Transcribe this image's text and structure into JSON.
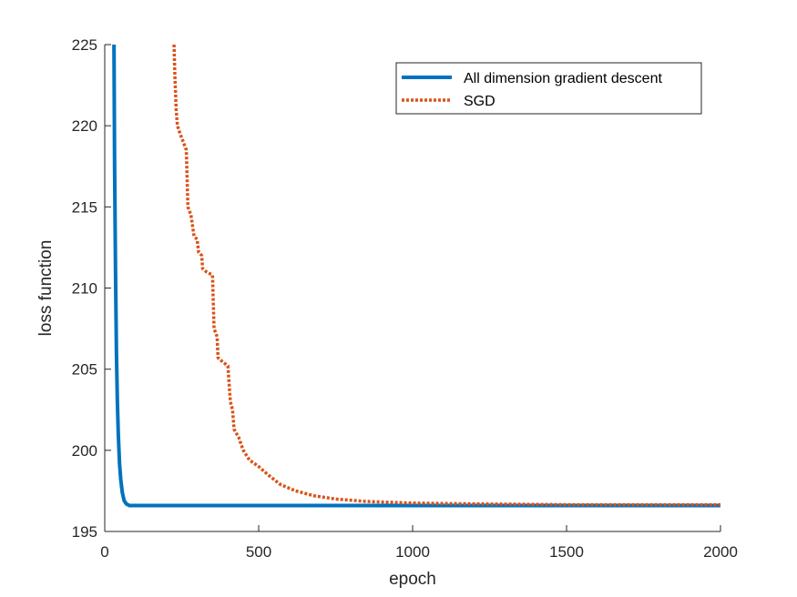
{
  "chart_data": {
    "type": "line",
    "title": "",
    "xlabel": "epoch",
    "ylabel": "loss function",
    "xlim": [
      0,
      2000
    ],
    "ylim": [
      195,
      225
    ],
    "xticks": [
      0,
      500,
      1000,
      1500,
      2000
    ],
    "xtick_labels": [
      "0",
      "500",
      "1000",
      "1500",
      "2000"
    ],
    "yticks": [
      195,
      200,
      205,
      210,
      215,
      220,
      225
    ],
    "ytick_labels": [
      "195",
      "200",
      "205",
      "210",
      "215",
      "220",
      "225"
    ],
    "grid": false,
    "legend_position": "top-right",
    "series": [
      {
        "name": "All dimension gradient descent",
        "color": "#0072BD",
        "style": "solid",
        "points": [
          [
            30,
            225
          ],
          [
            32,
            217.5
          ],
          [
            35,
            211
          ],
          [
            38,
            206
          ],
          [
            41,
            203
          ],
          [
            44,
            201
          ],
          [
            48,
            199.2
          ],
          [
            52,
            198.2
          ],
          [
            57,
            197.4
          ],
          [
            63,
            196.9
          ],
          [
            70,
            196.7
          ],
          [
            80,
            196.6
          ],
          [
            100,
            196.6
          ],
          [
            500,
            196.6
          ],
          [
            1000,
            196.6
          ],
          [
            1500,
            196.6
          ],
          [
            2000,
            196.6
          ]
        ]
      },
      {
        "name": "SGD",
        "color": "#D95319",
        "style": "dotted",
        "points": [
          [
            225,
            225
          ],
          [
            228,
            223
          ],
          [
            232,
            221
          ],
          [
            236,
            220
          ],
          [
            245,
            219.5
          ],
          [
            255,
            219
          ],
          [
            265,
            218.5
          ],
          [
            270,
            215
          ],
          [
            280,
            214.5
          ],
          [
            290,
            213.2
          ],
          [
            300,
            213
          ],
          [
            305,
            212.2
          ],
          [
            315,
            212
          ],
          [
            318,
            211.2
          ],
          [
            330,
            211
          ],
          [
            350,
            210.8
          ],
          [
            355,
            207.5
          ],
          [
            365,
            207
          ],
          [
            368,
            205.7
          ],
          [
            380,
            205.5
          ],
          [
            400,
            205.2
          ],
          [
            408,
            203
          ],
          [
            415,
            202.5
          ],
          [
            420,
            201.3
          ],
          [
            435,
            200.8
          ],
          [
            450,
            200
          ],
          [
            470,
            199.4
          ],
          [
            500,
            199
          ],
          [
            530,
            198.5
          ],
          [
            570,
            197.9
          ],
          [
            620,
            197.5
          ],
          [
            680,
            197.2
          ],
          [
            750,
            197
          ],
          [
            850,
            196.85
          ],
          [
            1000,
            196.75
          ],
          [
            1200,
            196.7
          ],
          [
            1500,
            196.65
          ],
          [
            2000,
            196.65
          ]
        ]
      }
    ]
  }
}
